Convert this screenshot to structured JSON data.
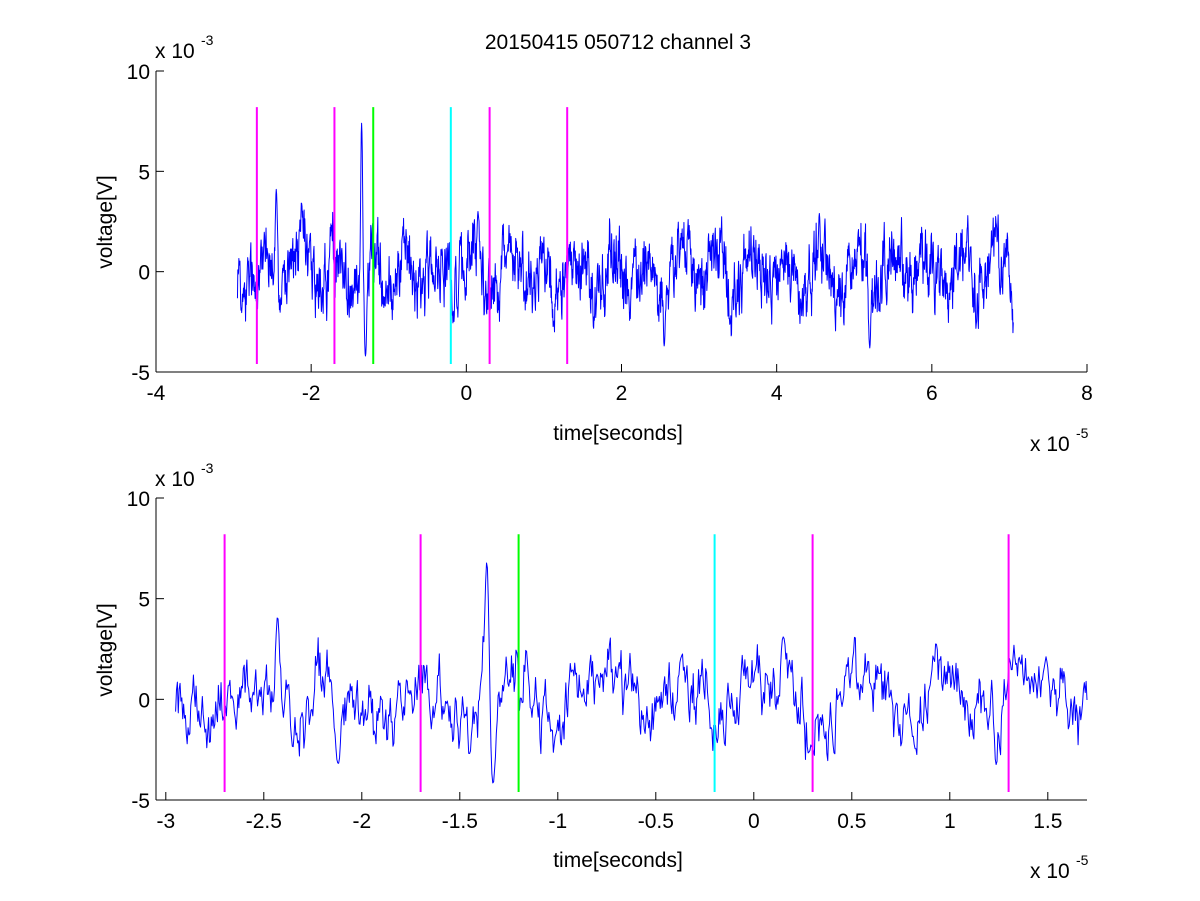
{
  "figure": {
    "title": "20150415 050712 channel 3"
  },
  "colors": {
    "signal": "#0000ff",
    "magenta": "#ff00ff",
    "green": "#00ff00",
    "cyan": "#00ffff",
    "axis": "#000000"
  },
  "chart_data": [
    {
      "type": "line",
      "xlabel": "time[seconds]",
      "ylabel": "voltage[V]",
      "x_exponent_label": "x 10",
      "x_exponent": "-5",
      "y_exponent_label": "x 10",
      "y_exponent": "-3",
      "xlim": [
        -4,
        8
      ],
      "ylim": [
        -5,
        10
      ],
      "x_ticks": [
        -4,
        -2,
        0,
        2,
        4,
        6,
        8
      ],
      "x_tick_labels": [
        "-4",
        "-2",
        "0",
        "2",
        "4",
        "6",
        "8"
      ],
      "y_ticks": [
        -5,
        0,
        5,
        10
      ],
      "y_tick_labels": [
        "-5",
        "0",
        "5",
        "10"
      ],
      "signal_range_x": [
        -2.95,
        7.05
      ],
      "markers": [
        {
          "x": -2.7,
          "color": "magenta"
        },
        {
          "x": -1.7,
          "color": "magenta"
        },
        {
          "x": -1.2,
          "color": "green"
        },
        {
          "x": -0.2,
          "color": "cyan"
        },
        {
          "x": 0.3,
          "color": "magenta"
        },
        {
          "x": 1.3,
          "color": "magenta"
        }
      ],
      "marker_y_range": [
        -4.6,
        8.2
      ],
      "signal_features": [
        {
          "x": -2.45,
          "y": 4.1
        },
        {
          "x": -1.35,
          "y": 7.4
        },
        {
          "x": -1.3,
          "y": -4.2
        },
        {
          "x": 0.15,
          "y": 3.0
        },
        {
          "x": 2.55,
          "y": -3.7
        },
        {
          "x": 5.2,
          "y": -3.8
        },
        {
          "x": 4.55,
          "y": 2.9
        }
      ],
      "grid": false
    },
    {
      "type": "line",
      "xlabel": "time[seconds]",
      "ylabel": "voltage[V]",
      "x_exponent_label": "x 10",
      "x_exponent": "-5",
      "y_exponent_label": "x 10",
      "y_exponent": "-3",
      "xlim": [
        -3.05,
        1.7
      ],
      "ylim": [
        -5,
        10
      ],
      "x_ticks": [
        -3,
        -2.5,
        -2,
        -1.5,
        -1,
        -0.5,
        0,
        0.5,
        1,
        1.5
      ],
      "x_tick_labels": [
        "-3",
        "-2.5",
        "-2",
        "-1.5",
        "-1",
        "-0.5",
        "0",
        "0.5",
        "1",
        "1.5"
      ],
      "y_ticks": [
        -5,
        0,
        5,
        10
      ],
      "y_tick_labels": [
        "-5",
        "0",
        "5",
        "10"
      ],
      "signal_range_x": [
        -2.95,
        1.7
      ],
      "markers": [
        {
          "x": -2.7,
          "color": "magenta"
        },
        {
          "x": -1.7,
          "color": "magenta"
        },
        {
          "x": -1.2,
          "color": "green"
        },
        {
          "x": -0.2,
          "color": "cyan"
        },
        {
          "x": 0.3,
          "color": "magenta"
        },
        {
          "x": 1.3,
          "color": "magenta"
        }
      ],
      "marker_y_range": [
        -4.6,
        8.2
      ],
      "signal_features": [
        {
          "x": -2.43,
          "y": 4.1
        },
        {
          "x": -1.36,
          "y": 7.4
        },
        {
          "x": -1.33,
          "y": -4.2
        },
        {
          "x": 0.15,
          "y": 3.1
        },
        {
          "x": -2.12,
          "y": -3.2
        }
      ],
      "grid": false
    }
  ]
}
